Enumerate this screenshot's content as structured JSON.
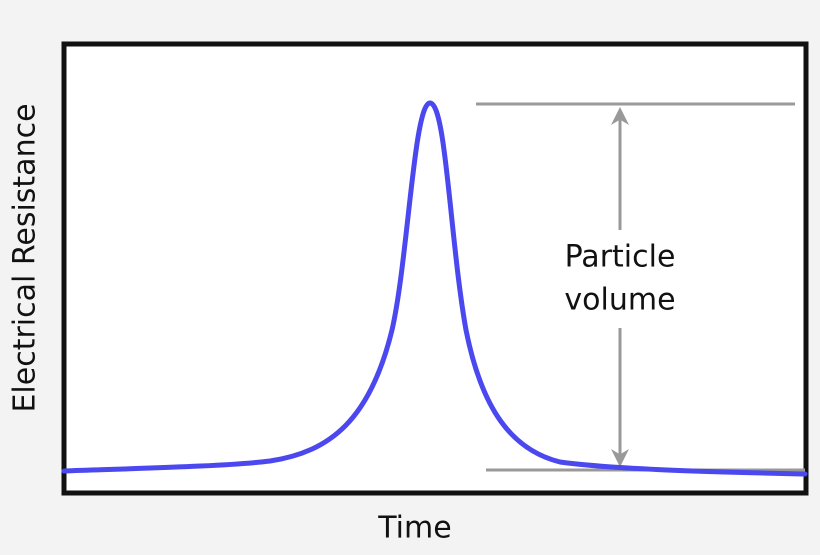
{
  "axes": {
    "x_label": "Time",
    "y_label": "Electrical Resistance"
  },
  "annotation": {
    "lines": [
      "Particle",
      "volume"
    ]
  }
}
